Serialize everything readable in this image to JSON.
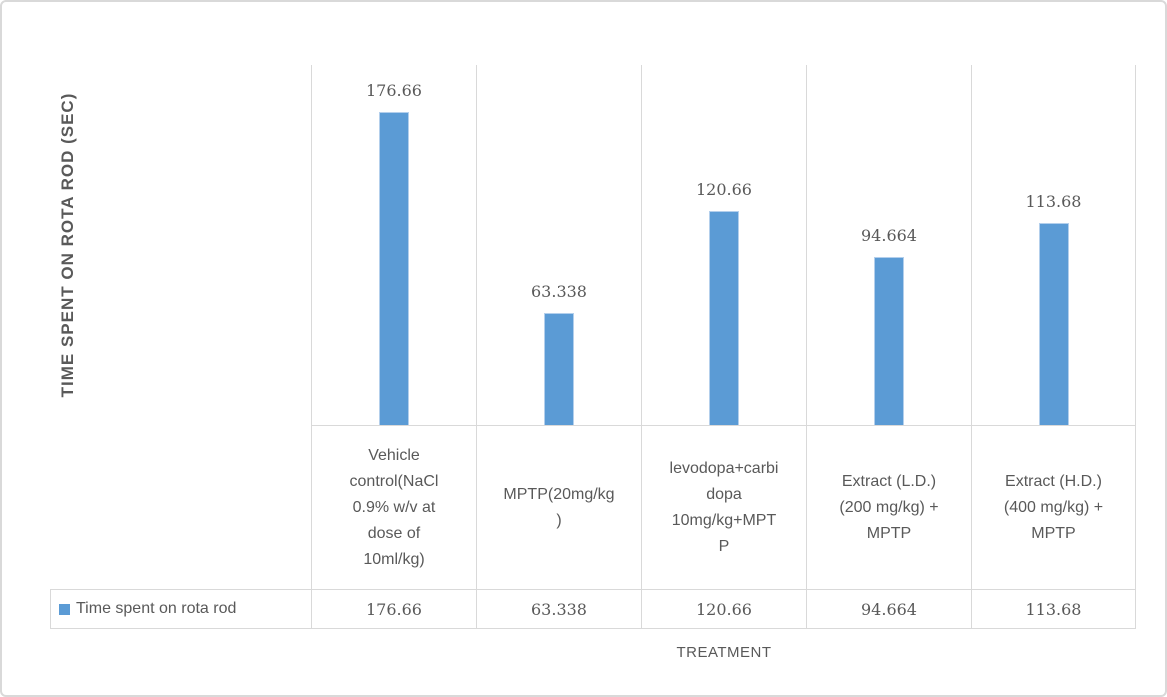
{
  "chart_data": {
    "type": "bar",
    "title": "",
    "xlabel": "TREATMENT",
    "ylabel": "TIME SPENT ON ROTA ROD (SEC)",
    "categories": [
      "Vehicle control(NaCl 0.9% w/v at dose of 10ml/kg)",
      "MPTP(20mg/kg)",
      "levodopa+carbidopa 10mg/kg+MPTP",
      "Extract (L.D.) (200 mg/kg) + MPTP",
      "Extract (H.D.) (400 mg/kg) + MPTP"
    ],
    "category_display_lines": [
      "Vehicle\ncontrol(NaCl\n0.9% w/v at\ndose of\n10ml/kg)",
      "MPTP(20mg/kg\n)",
      "levodopa+carbi\ndopa\n10mg/kg+MPT\nP",
      "Extract (L.D.)\n(200 mg/kg) +\nMPTP",
      "Extract (H.D.)\n(400 mg/kg) +\nMPTP"
    ],
    "series": [
      {
        "name": "Time spent on rota rod",
        "values": [
          176.66,
          63.338,
          120.66,
          94.664,
          113.68
        ],
        "data_labels": [
          "176.66",
          "63.338",
          "120.66",
          "94.664",
          "113.68"
        ]
      }
    ],
    "table_values": [
      "176.66",
      "63.338",
      "120.66",
      "94.664",
      "113.68"
    ],
    "ylim": [
      0,
      203
    ],
    "grid": true,
    "legend_position": "bottom-left-table",
    "colors": {
      "bar": "#5b9bd5",
      "bar_border": "#b3cfec",
      "grid_line": "#d9d9d9",
      "text": "#595959",
      "canvas_border": "#d9d9d9"
    }
  }
}
